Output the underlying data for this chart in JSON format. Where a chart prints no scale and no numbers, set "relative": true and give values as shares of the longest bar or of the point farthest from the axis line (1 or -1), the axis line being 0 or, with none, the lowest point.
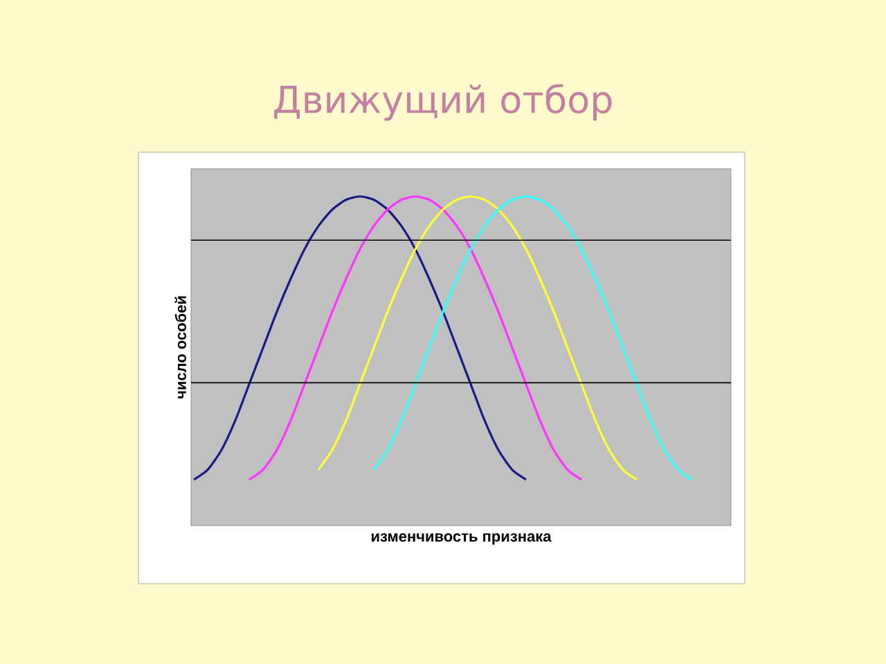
{
  "chart_data": {
    "type": "line",
    "title": "Движущий отбор",
    "xlabel": "изменчивость признака",
    "ylabel": "число особей",
    "relative": true,
    "ref_lines": [
      {
        "axis": "y",
        "value": 0.434,
        "color": "#000000"
      },
      {
        "axis": "y",
        "value": 0.867,
        "color": "#000000"
      }
    ],
    "categories": [
      null,
      null,
      null,
      null,
      null,
      null,
      null,
      null,
      null,
      null,
      null,
      null,
      null,
      null,
      null,
      null,
      null,
      null,
      null,
      null,
      null,
      null,
      null,
      null,
      null,
      null,
      null,
      null,
      null,
      null,
      null,
      null,
      null,
      null,
      null,
      null,
      null,
      null,
      null
    ],
    "series": [
      {
        "color": "#1a1a80",
        "values": [
          0.14,
          0.17,
          0.23,
          0.32,
          0.43,
          0.54,
          0.65,
          0.75,
          0.84,
          0.91,
          0.96,
          0.99,
          1.0,
          0.99,
          0.96,
          0.91,
          0.84,
          0.75,
          0.65,
          0.54,
          0.43,
          0.32,
          0.23,
          0.17,
          0.14,
          null,
          null,
          null,
          null,
          null,
          null,
          null,
          null,
          null,
          null,
          null,
          null,
          null,
          null
        ]
      },
      {
        "color": "#ff33ff",
        "values": [
          null,
          null,
          null,
          null,
          0.14,
          0.17,
          0.23,
          0.32,
          0.43,
          0.54,
          0.65,
          0.75,
          0.84,
          0.91,
          0.96,
          0.99,
          1.0,
          0.99,
          0.96,
          0.91,
          0.84,
          0.75,
          0.65,
          0.54,
          0.43,
          0.32,
          0.23,
          0.17,
          0.14,
          null,
          null,
          null,
          null,
          null,
          null,
          null,
          null,
          null,
          null
        ]
      },
      {
        "color": "#ffff33",
        "values": [
          null,
          null,
          null,
          null,
          null,
          null,
          null,
          null,
          null,
          0.17,
          0.23,
          0.32,
          0.43,
          0.54,
          0.65,
          0.75,
          0.84,
          0.91,
          0.96,
          0.99,
          1.0,
          0.99,
          0.96,
          0.91,
          0.84,
          0.75,
          0.65,
          0.54,
          0.43,
          0.32,
          0.23,
          0.17,
          0.14,
          null,
          null,
          null,
          null,
          null,
          null
        ]
      },
      {
        "color": "#33ffff",
        "values": [
          null,
          null,
          null,
          null,
          null,
          null,
          null,
          null,
          null,
          null,
          null,
          null,
          null,
          0.17,
          0.23,
          0.32,
          0.43,
          0.54,
          0.65,
          0.75,
          0.84,
          0.91,
          0.96,
          0.99,
          1.0,
          0.99,
          0.96,
          0.91,
          0.84,
          0.75,
          0.65,
          0.54,
          0.43,
          0.32,
          0.23,
          0.17,
          0.14,
          null,
          null
        ]
      }
    ]
  }
}
